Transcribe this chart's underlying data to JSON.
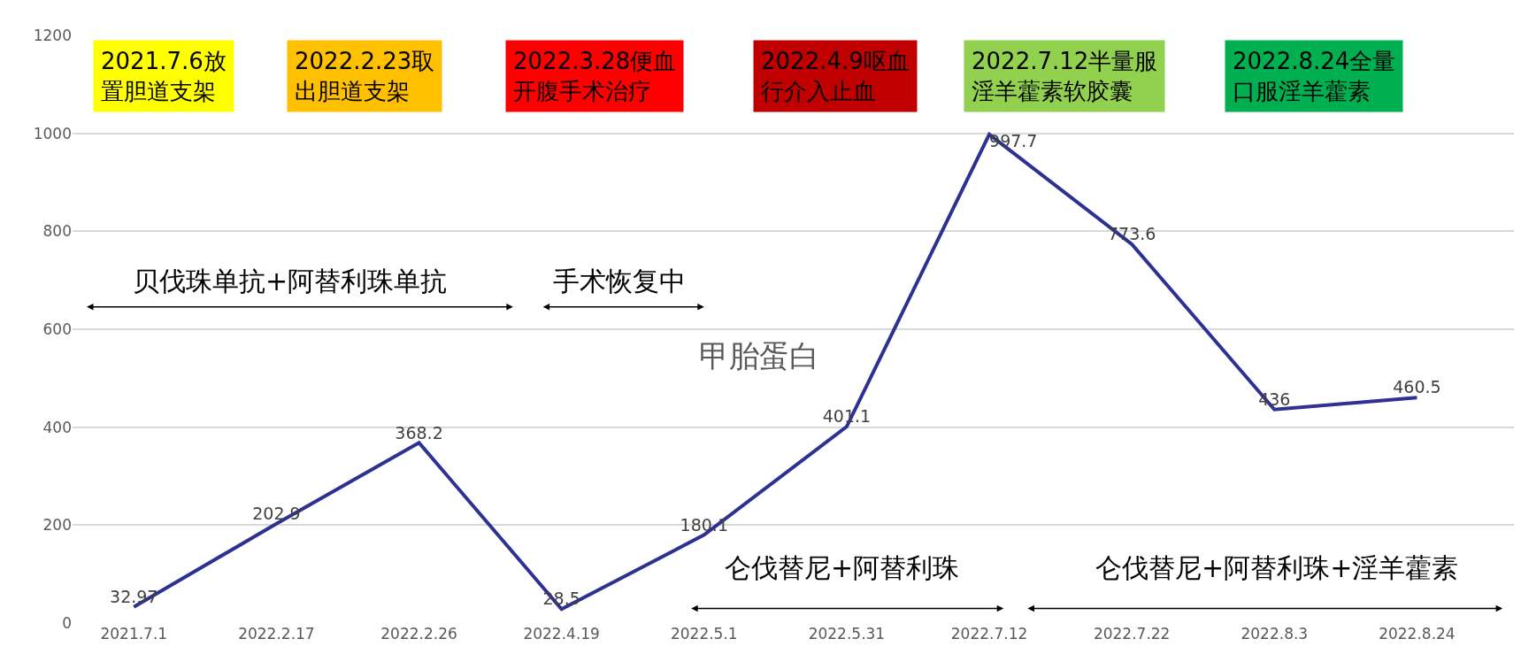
{
  "chart_data": {
    "type": "line",
    "title": "甲胎蛋白",
    "categories": [
      "2021.7.1",
      "2022.2.17",
      "2022.2.26",
      "2022.4.19",
      "2022.5.1",
      "2022.5.31",
      "2022.7.12",
      "2022.7.22",
      "2022.8.3",
      "2022.8.24"
    ],
    "series": [
      {
        "color": "#2e3192",
        "values": [
          32.97,
          202.9,
          368.2,
          28.5,
          180.1,
          401.1,
          997.7,
          773.6,
          436,
          460.5
        ]
      }
    ],
    "ylim": [
      0,
      1200
    ],
    "yticks": [
      0,
      200,
      400,
      600,
      800,
      1000,
      1200
    ],
    "grid": "y",
    "data_labels": true,
    "marker": "none",
    "line_style": "solid",
    "annotations": [
      "2021.7.6放置胆道支架",
      "2022.2.23取出胆道支架",
      "2022.3.28便血开腹手术治疗",
      "2022.4.9呕血行介入止血",
      "2022.7.12半量服淫羊藿素软胶囊",
      "2022.8.24全量口服淫羊藿素",
      "贝伐珠单抗+阿替利珠单抗",
      "手术恢复中",
      "仑伐替尼+阿替利珠",
      "仑伐替尼+阿替利珠+淫羊藿素"
    ]
  }
}
